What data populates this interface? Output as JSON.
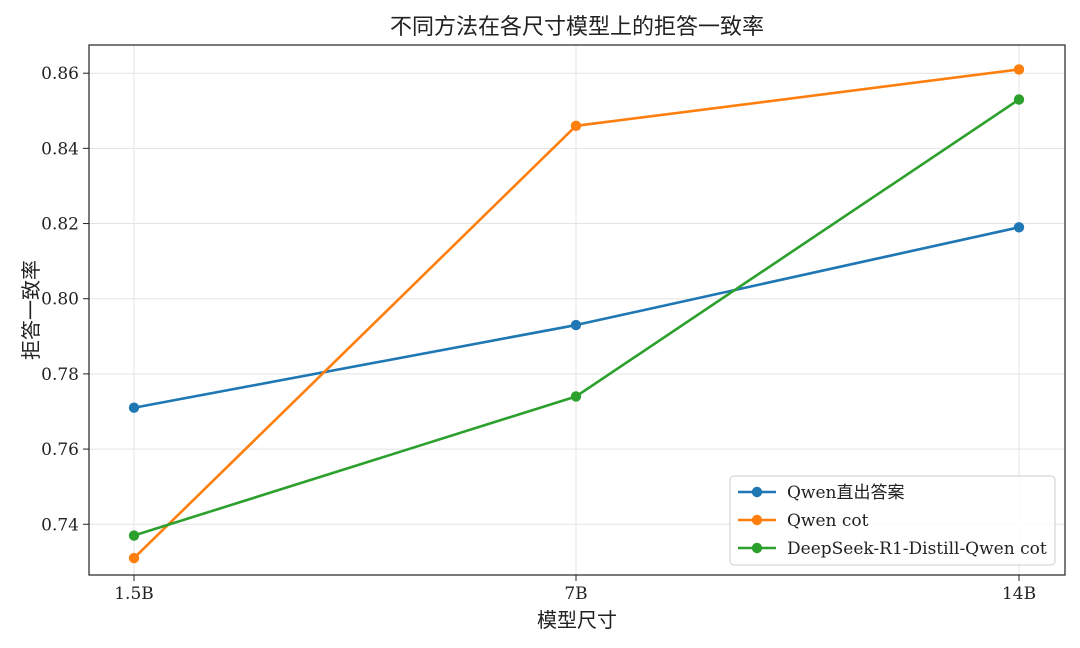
{
  "chart_data": {
    "type": "line",
    "title": "不同方法在各尺寸模型上的拒答一致率",
    "xlabel": "模型尺寸",
    "ylabel": "拒答一致率",
    "categories": [
      "1.5B",
      "7B",
      "14B"
    ],
    "ylim": [
      0.7265,
      0.8675
    ],
    "yticks": [
      "0.74",
      "0.76",
      "0.78",
      "0.80",
      "0.82",
      "0.84",
      "0.86"
    ],
    "grid": true,
    "legend_position": "lower-right",
    "series": [
      {
        "name": "Qwen直出答案",
        "color": "#1f77b4",
        "values": [
          0.771,
          0.793,
          0.819
        ]
      },
      {
        "name": "Qwen cot",
        "color": "#ff7f0e",
        "values": [
          0.731,
          0.846,
          0.861
        ]
      },
      {
        "name": "DeepSeek-R1-Distill-Qwen cot",
        "color": "#2ca02c",
        "values": [
          0.737,
          0.774,
          0.853
        ]
      }
    ]
  }
}
